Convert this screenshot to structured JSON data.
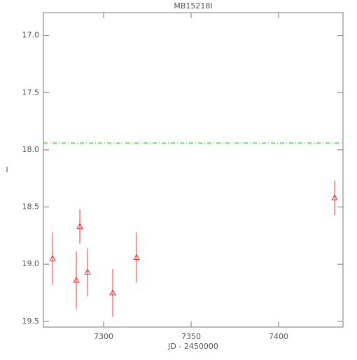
{
  "chart_data": {
    "type": "scatter",
    "title": "MB15218I",
    "x_label": "JD - 2450000",
    "y_label": "I",
    "x": [
      7270.8,
      7284.4,
      7286.4,
      7290.8,
      7305.2,
      7318.8,
      7432
    ],
    "values": [
      18.95,
      19.14,
      18.67,
      19.07,
      19.25,
      18.94,
      18.42
    ],
    "errors": [
      0.23,
      0.25,
      0.15,
      0.21,
      0.21,
      0.22,
      0.15
    ],
    "color": "#ff0000",
    "reference_line": 17.94,
    "reference_color": "#00cc00",
    "xlim": [
      7265.6,
      7436.8
    ],
    "xticks": [
      7300,
      7350,
      7400
    ],
    "ylim": [
      19.55,
      16.8
    ],
    "yticks": [
      {
        "value": 17,
        "label": "17.0"
      },
      17.5,
      {
        "value": 18,
        "label": "18.0"
      },
      18.5,
      {
        "value": 19,
        "label": "19.0"
      },
      19.5
    ]
  }
}
